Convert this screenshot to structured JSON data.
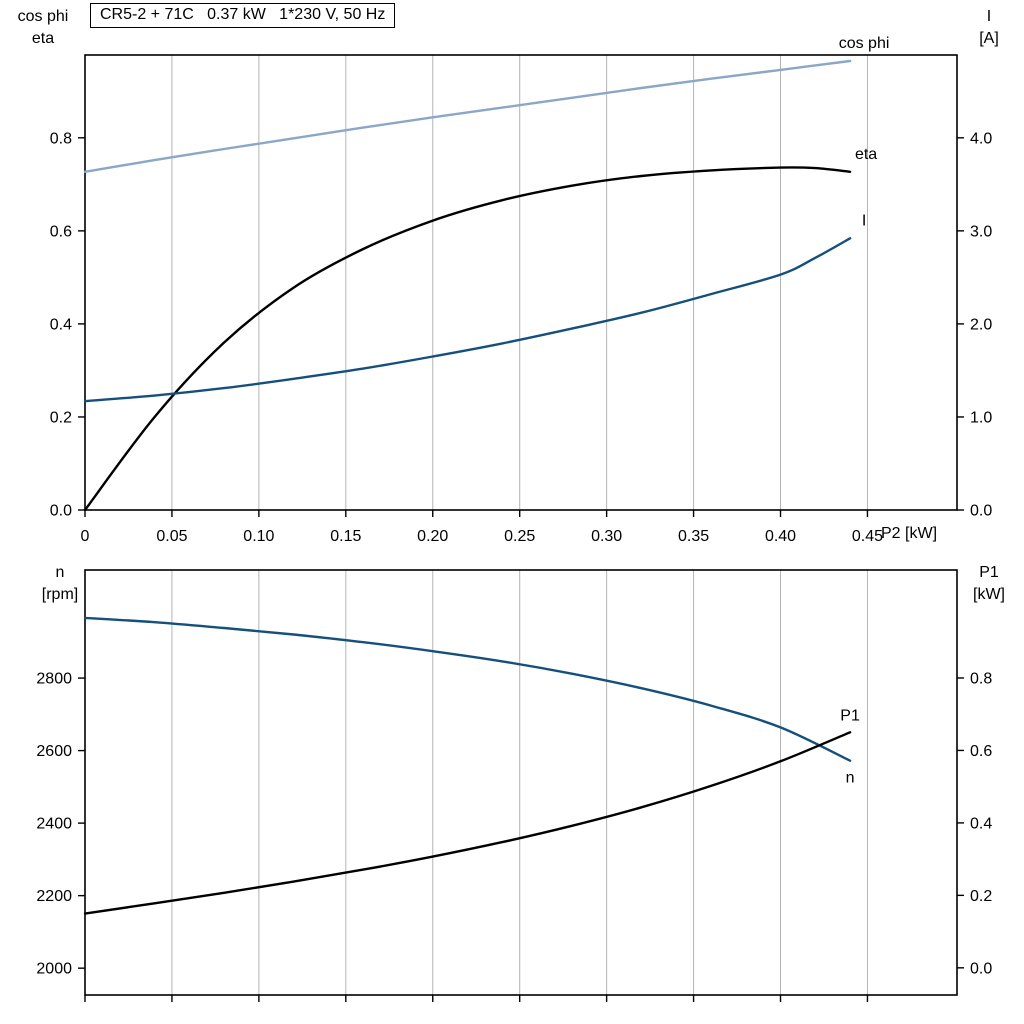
{
  "page": {
    "background": "#ffffff",
    "grid_color": "#b4b4b4",
    "axis_color": "#000000"
  },
  "chart_data": [
    {
      "type": "line",
      "title": "CR5-2 + 71C   0.37 kW   1*230 V, 50 Hz",
      "x_axis": {
        "label": "P2 [kW]",
        "min": 0,
        "max": 0.5015,
        "ticks": [
          0,
          0.05,
          0.1,
          0.15,
          0.2,
          0.25,
          0.3,
          0.35,
          0.4,
          0.45
        ],
        "tick_labels": [
          "0",
          "0.05",
          "0.10",
          "0.15",
          "0.20",
          "0.25",
          "0.30",
          "0.35",
          "0.40",
          "0.45"
        ]
      },
      "left_axis": {
        "title_lines": [
          "cos phi",
          "eta"
        ],
        "min": 0,
        "max": 0.978,
        "ticks": [
          0,
          0.2,
          0.4,
          0.6,
          0.8
        ],
        "tick_labels": [
          "0.0",
          "0.2",
          "0.4",
          "0.6",
          "0.8"
        ]
      },
      "right_axis": {
        "title_lines": [
          "I",
          "[A]"
        ],
        "min": 0,
        "max": 4.89,
        "ticks": [
          0,
          1,
          2,
          3,
          4
        ],
        "tick_labels": [
          "0.0",
          "1.0",
          "2.0",
          "3.0",
          "4.0"
        ]
      },
      "series": [
        {
          "name": "cos phi",
          "axis": "left",
          "color": "#8CA7C6",
          "x": [
            0,
            0.04,
            0.08,
            0.12,
            0.16,
            0.2,
            0.24,
            0.28,
            0.32,
            0.36,
            0.4,
            0.44
          ],
          "y": [
            0.727,
            0.752,
            0.776,
            0.799,
            0.822,
            0.844,
            0.865,
            0.886,
            0.907,
            0.927,
            0.946,
            0.965
          ]
        },
        {
          "name": "eta",
          "axis": "left",
          "color": "#000000",
          "x": [
            0,
            0.04,
            0.08,
            0.12,
            0.16,
            0.2,
            0.24,
            0.28,
            0.32,
            0.36,
            0.4,
            0.42,
            0.44
          ],
          "y": [
            0,
            0.2,
            0.36,
            0.478,
            0.561,
            0.622,
            0.666,
            0.697,
            0.718,
            0.73,
            0.736,
            0.735,
            0.727
          ]
        },
        {
          "name": "I",
          "axis": "right",
          "color": "#15507D",
          "x": [
            0,
            0.04,
            0.08,
            0.12,
            0.16,
            0.2,
            0.24,
            0.28,
            0.32,
            0.36,
            0.4,
            0.42,
            0.44
          ],
          "y": [
            1.17,
            1.23,
            1.31,
            1.41,
            1.52,
            1.65,
            1.79,
            1.95,
            2.12,
            2.32,
            2.53,
            2.71,
            2.92
          ]
        }
      ]
    },
    {
      "type": "line",
      "title": "",
      "x_axis": {
        "label": "",
        "min": 0,
        "max": 0.5015,
        "ticks": [
          0,
          0.05,
          0.1,
          0.15,
          0.2,
          0.25,
          0.3,
          0.35,
          0.4,
          0.45
        ],
        "tick_labels": []
      },
      "left_axis": {
        "title_lines": [
          "n",
          "[rpm]"
        ],
        "min": 1926,
        "max": 3098,
        "ticks": [
          2000,
          2200,
          2400,
          2600,
          2800
        ],
        "tick_labels": [
          "2000",
          "2200",
          "2400",
          "2600",
          "2800"
        ]
      },
      "right_axis": {
        "title_lines": [
          "P1",
          "[kW]"
        ],
        "min": -0.075,
        "max": 1.098,
        "ticks": [
          0,
          0.2,
          0.4,
          0.6,
          0.8
        ],
        "tick_labels": [
          "0.0",
          "0.2",
          "0.4",
          "0.6",
          "0.8"
        ]
      },
      "series": [
        {
          "name": "n",
          "axis": "left",
          "color": "#15507D",
          "x": [
            0,
            0.04,
            0.08,
            0.12,
            0.16,
            0.2,
            0.24,
            0.28,
            0.32,
            0.36,
            0.4,
            0.44
          ],
          "y": [
            2966,
            2954,
            2938,
            2920,
            2899,
            2874,
            2846,
            2812,
            2772,
            2724,
            2664,
            2572
          ]
        },
        {
          "name": "P1",
          "axis": "right",
          "color": "#000000",
          "x": [
            0,
            0.04,
            0.08,
            0.12,
            0.16,
            0.2,
            0.24,
            0.28,
            0.32,
            0.36,
            0.4,
            0.44
          ],
          "y": [
            0.15,
            0.178,
            0.207,
            0.238,
            0.271,
            0.307,
            0.347,
            0.392,
            0.443,
            0.502,
            0.57,
            0.65
          ]
        }
      ]
    }
  ]
}
